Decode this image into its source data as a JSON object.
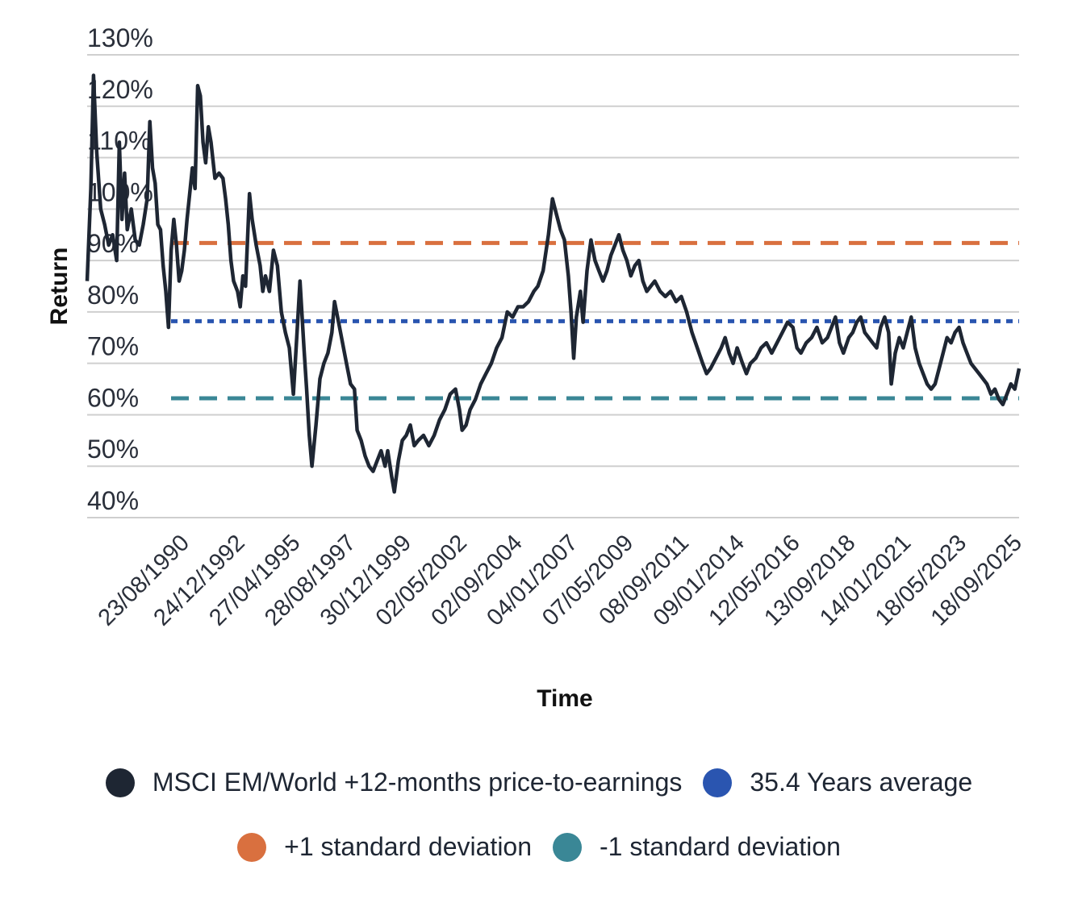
{
  "chart_data": {
    "type": "line",
    "title": "",
    "xlabel": "Time",
    "ylabel": "Return",
    "ylim": [
      40,
      130
    ],
    "yticks": [
      40,
      50,
      60,
      70,
      80,
      90,
      100,
      110,
      120,
      130
    ],
    "ytick_labels": [
      "40%",
      "50%",
      "60%",
      "70%",
      "80%",
      "90%",
      "100%",
      "110%",
      "120%",
      "130%"
    ],
    "x_tick_labels": [
      "23/08/1990",
      "24/12/1992",
      "27/04/1995",
      "28/08/1997",
      "30/12/1999",
      "02/05/2002",
      "02/09/2004",
      "04/01/2007",
      "07/05/2009",
      "08/09/2011",
      "09/01/2014",
      "12/05/2016",
      "13/09/2018",
      "14/01/2021",
      "18/05/2023",
      "18/09/2025"
    ],
    "x_range": [
      1990.64,
      2025.71
    ],
    "grid": true,
    "legend_position": "bottom",
    "series": [
      {
        "name": "MSCI EM/World +12-months price-to-earnings",
        "color": "#1e2633",
        "style": "solid",
        "points": [
          [
            1990.64,
            86
          ],
          [
            1990.78,
            104
          ],
          [
            1990.88,
            126
          ],
          [
            1991.0,
            111
          ],
          [
            1991.15,
            100
          ],
          [
            1991.3,
            97
          ],
          [
            1991.45,
            93
          ],
          [
            1991.6,
            95
          ],
          [
            1991.75,
            90
          ],
          [
            1991.85,
            113
          ],
          [
            1991.95,
            98
          ],
          [
            1992.05,
            107
          ],
          [
            1992.15,
            96
          ],
          [
            1992.3,
            100
          ],
          [
            1992.45,
            94
          ],
          [
            1992.6,
            93
          ],
          [
            1992.75,
            97
          ],
          [
            1992.9,
            102
          ],
          [
            1993.0,
            117
          ],
          [
            1993.1,
            108
          ],
          [
            1993.2,
            105
          ],
          [
            1993.3,
            97
          ],
          [
            1993.4,
            96
          ],
          [
            1993.5,
            89
          ],
          [
            1993.6,
            84
          ],
          [
            1993.7,
            77
          ],
          [
            1993.8,
            92
          ],
          [
            1993.9,
            98
          ],
          [
            1994.0,
            93
          ],
          [
            1994.1,
            86
          ],
          [
            1994.2,
            88
          ],
          [
            1994.3,
            92
          ],
          [
            1994.4,
            98
          ],
          [
            1994.5,
            103
          ],
          [
            1994.6,
            108
          ],
          [
            1994.7,
            104
          ],
          [
            1994.8,
            124
          ],
          [
            1994.9,
            122
          ],
          [
            1995.0,
            113
          ],
          [
            1995.1,
            109
          ],
          [
            1995.2,
            116
          ],
          [
            1995.3,
            113
          ],
          [
            1995.45,
            106
          ],
          [
            1995.6,
            107
          ],
          [
            1995.75,
            106
          ],
          [
            1995.85,
            102
          ],
          [
            1995.95,
            97
          ],
          [
            1996.05,
            90
          ],
          [
            1996.15,
            86
          ],
          [
            1996.3,
            84
          ],
          [
            1996.4,
            81
          ],
          [
            1996.5,
            87
          ],
          [
            1996.6,
            85
          ],
          [
            1996.75,
            103
          ],
          [
            1996.85,
            98
          ],
          [
            1997.0,
            93
          ],
          [
            1997.15,
            89
          ],
          [
            1997.25,
            84
          ],
          [
            1997.35,
            87
          ],
          [
            1997.5,
            84
          ],
          [
            1997.65,
            92
          ],
          [
            1997.8,
            89
          ],
          [
            1997.95,
            80
          ],
          [
            1998.1,
            76
          ],
          [
            1998.25,
            73
          ],
          [
            1998.4,
            64
          ],
          [
            1998.55,
            77
          ],
          [
            1998.65,
            86
          ],
          [
            1998.8,
            73
          ],
          [
            1998.9,
            65
          ],
          [
            1999.0,
            56
          ],
          [
            1999.1,
            50
          ],
          [
            1999.25,
            58
          ],
          [
            1999.4,
            67
          ],
          [
            1999.55,
            70
          ],
          [
            1999.7,
            72
          ],
          [
            1999.85,
            76
          ],
          [
            1999.95,
            82
          ],
          [
            2000.1,
            78
          ],
          [
            2000.25,
            74
          ],
          [
            2000.4,
            70
          ],
          [
            2000.55,
            66
          ],
          [
            2000.7,
            65
          ],
          [
            2000.8,
            57
          ],
          [
            2000.95,
            55
          ],
          [
            2001.1,
            52
          ],
          [
            2001.25,
            50
          ],
          [
            2001.4,
            49
          ],
          [
            2001.55,
            51
          ],
          [
            2001.7,
            53
          ],
          [
            2001.85,
            50
          ],
          [
            2001.95,
            53
          ],
          [
            2002.1,
            48
          ],
          [
            2002.2,
            45
          ],
          [
            2002.35,
            51
          ],
          [
            2002.5,
            55
          ],
          [
            2002.65,
            56
          ],
          [
            2002.8,
            58
          ],
          [
            2002.95,
            54
          ],
          [
            2003.1,
            55
          ],
          [
            2003.3,
            56
          ],
          [
            2003.5,
            54
          ],
          [
            2003.7,
            56
          ],
          [
            2003.9,
            59
          ],
          [
            2004.1,
            61
          ],
          [
            2004.3,
            64
          ],
          [
            2004.5,
            65
          ],
          [
            2004.65,
            61
          ],
          [
            2004.75,
            57
          ],
          [
            2004.9,
            58
          ],
          [
            2005.05,
            61
          ],
          [
            2005.25,
            63
          ],
          [
            2005.45,
            66
          ],
          [
            2005.65,
            68
          ],
          [
            2005.85,
            70
          ],
          [
            2006.05,
            73
          ],
          [
            2006.25,
            75
          ],
          [
            2006.45,
            80
          ],
          [
            2006.65,
            79
          ],
          [
            2006.85,
            81
          ],
          [
            2007.05,
            81
          ],
          [
            2007.25,
            82
          ],
          [
            2007.45,
            84
          ],
          [
            2007.6,
            85
          ],
          [
            2007.8,
            88
          ],
          [
            2008.0,
            95
          ],
          [
            2008.15,
            102
          ],
          [
            2008.3,
            99
          ],
          [
            2008.45,
            96
          ],
          [
            2008.6,
            94
          ],
          [
            2008.75,
            87
          ],
          [
            2008.85,
            80
          ],
          [
            2008.95,
            71
          ],
          [
            2009.05,
            79
          ],
          [
            2009.2,
            84
          ],
          [
            2009.3,
            78
          ],
          [
            2009.45,
            88
          ],
          [
            2009.6,
            94
          ],
          [
            2009.75,
            90
          ],
          [
            2009.9,
            88
          ],
          [
            2010.05,
            86
          ],
          [
            2010.2,
            88
          ],
          [
            2010.35,
            91
          ],
          [
            2010.5,
            93
          ],
          [
            2010.65,
            95
          ],
          [
            2010.8,
            92
          ],
          [
            2010.95,
            90
          ],
          [
            2011.1,
            87
          ],
          [
            2011.25,
            89
          ],
          [
            2011.4,
            90
          ],
          [
            2011.55,
            86
          ],
          [
            2011.7,
            84
          ],
          [
            2011.85,
            85
          ],
          [
            2012.0,
            86
          ],
          [
            2012.2,
            84
          ],
          [
            2012.4,
            83
          ],
          [
            2012.6,
            84
          ],
          [
            2012.8,
            82
          ],
          [
            2013.0,
            83
          ],
          [
            2013.2,
            80
          ],
          [
            2013.4,
            76
          ],
          [
            2013.6,
            73
          ],
          [
            2013.8,
            70
          ],
          [
            2013.95,
            68
          ],
          [
            2014.1,
            69
          ],
          [
            2014.3,
            71
          ],
          [
            2014.5,
            73
          ],
          [
            2014.65,
            75
          ],
          [
            2014.8,
            72
          ],
          [
            2014.95,
            70
          ],
          [
            2015.1,
            73
          ],
          [
            2015.3,
            70
          ],
          [
            2015.45,
            68
          ],
          [
            2015.6,
            70
          ],
          [
            2015.8,
            71
          ],
          [
            2016.0,
            73
          ],
          [
            2016.2,
            74
          ],
          [
            2016.4,
            72
          ],
          [
            2016.6,
            74
          ],
          [
            2016.8,
            76
          ],
          [
            2017.0,
            78
          ],
          [
            2017.2,
            77
          ],
          [
            2017.35,
            73
          ],
          [
            2017.5,
            72
          ],
          [
            2017.7,
            74
          ],
          [
            2017.9,
            75
          ],
          [
            2018.1,
            77
          ],
          [
            2018.3,
            74
          ],
          [
            2018.5,
            75
          ],
          [
            2018.65,
            77
          ],
          [
            2018.8,
            79
          ],
          [
            2018.95,
            74
          ],
          [
            2019.1,
            72
          ],
          [
            2019.3,
            75
          ],
          [
            2019.45,
            76
          ],
          [
            2019.6,
            78
          ],
          [
            2019.75,
            79
          ],
          [
            2019.9,
            76
          ],
          [
            2020.05,
            75
          ],
          [
            2020.2,
            74
          ],
          [
            2020.35,
            73
          ],
          [
            2020.5,
            77
          ],
          [
            2020.65,
            79
          ],
          [
            2020.8,
            76
          ],
          [
            2020.9,
            66
          ],
          [
            2021.05,
            72
          ],
          [
            2021.2,
            75
          ],
          [
            2021.35,
            73
          ],
          [
            2021.5,
            76
          ],
          [
            2021.65,
            79
          ],
          [
            2021.8,
            73
          ],
          [
            2021.95,
            70
          ],
          [
            2022.1,
            68
          ],
          [
            2022.25,
            66
          ],
          [
            2022.4,
            65
          ],
          [
            2022.55,
            66
          ],
          [
            2022.7,
            69
          ],
          [
            2022.85,
            72
          ],
          [
            2023.0,
            75
          ],
          [
            2023.15,
            74
          ],
          [
            2023.3,
            76
          ],
          [
            2023.45,
            77
          ],
          [
            2023.6,
            74
          ],
          [
            2023.75,
            72
          ],
          [
            2023.9,
            70
          ],
          [
            2024.05,
            69
          ],
          [
            2024.2,
            68
          ],
          [
            2024.35,
            67
          ],
          [
            2024.5,
            66
          ],
          [
            2024.65,
            64
          ],
          [
            2024.8,
            65
          ],
          [
            2024.95,
            63
          ],
          [
            2025.1,
            62
          ],
          [
            2025.25,
            64
          ],
          [
            2025.4,
            66
          ],
          [
            2025.55,
            65
          ],
          [
            2025.71,
            69
          ]
        ]
      },
      {
        "name": "35.4 Years average",
        "color": "#2a55b0",
        "style": "dotted",
        "value": 78.2
      },
      {
        "name": "+1 standard deviation",
        "color": "#d9703f",
        "style": "dashed",
        "value": 93.4
      },
      {
        "name": "-1 standard deviation",
        "color": "#3a8796",
        "style": "dashed",
        "value": 63.2
      }
    ]
  },
  "legend": [
    {
      "label": "MSCI EM/World +12-months price-to-earnings",
      "color": "#1e2633"
    },
    {
      "label": "35.4 Years average",
      "color": "#2a55b0"
    },
    {
      "label": "+1 standard deviation",
      "color": "#d9703f"
    },
    {
      "label": "-1 standard deviation",
      "color": "#3a8796"
    }
  ]
}
